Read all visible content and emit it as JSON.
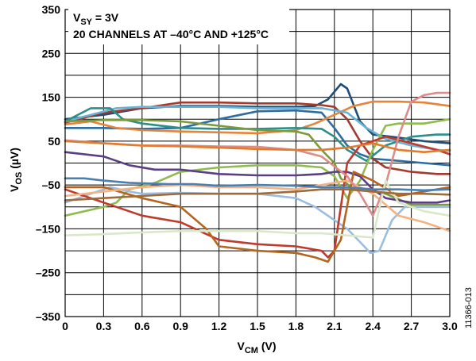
{
  "chart_data": {
    "type": "line",
    "title": "",
    "annotation": {
      "line1_main": "V",
      "line1_sub": "SY",
      "line1_rest": " = 3V",
      "line2": "20 CHANNELS AT –40°C AND +125°C"
    },
    "xlabel": {
      "main": "V",
      "sub": "CM",
      "rest": " (V)"
    },
    "ylabel": {
      "main": "V",
      "sub": "OS",
      "rest": " (µV)"
    },
    "figure_id": "11366-013",
    "xlim": [
      0,
      3.0
    ],
    "ylim": [
      -350,
      350
    ],
    "x_ticks": [
      "0",
      "0.3",
      "0.6",
      "0.9",
      "1.2",
      "1.5",
      "1.8",
      "2.1",
      "2.4",
      "2.7",
      "3.0"
    ],
    "y_ticks": [
      "350",
      "250",
      "150",
      "50",
      "–50",
      "–150",
      "–250",
      "–350"
    ],
    "y_tick_values": [
      350,
      250,
      150,
      50,
      -50,
      -150,
      -250,
      -350
    ],
    "grid": true,
    "series": [
      {
        "color": "#1f4e79",
        "points": [
          [
            0,
            100
          ],
          [
            0.3,
            110
          ],
          [
            0.6,
            125
          ],
          [
            0.9,
            130
          ],
          [
            1.2,
            130
          ],
          [
            1.5,
            128
          ],
          [
            1.8,
            128
          ],
          [
            1.95,
            130
          ],
          [
            2.05,
            145
          ],
          [
            2.15,
            180
          ],
          [
            2.2,
            170
          ],
          [
            2.3,
            95
          ],
          [
            2.4,
            65
          ],
          [
            2.6,
            58
          ],
          [
            2.8,
            50
          ],
          [
            3.0,
            45
          ]
        ]
      },
      {
        "color": "#2e6da4",
        "points": [
          [
            0,
            80
          ],
          [
            0.3,
            80
          ],
          [
            0.6,
            78
          ],
          [
            0.9,
            80
          ],
          [
            1.2,
            100
          ],
          [
            1.5,
            118
          ],
          [
            1.8,
            120
          ],
          [
            2.0,
            115
          ],
          [
            2.1,
            80
          ],
          [
            2.2,
            40
          ],
          [
            2.3,
            20
          ],
          [
            2.4,
            10
          ],
          [
            2.6,
            5
          ],
          [
            2.8,
            0
          ],
          [
            3.0,
            -5
          ]
        ]
      },
      {
        "color": "#a23b2c",
        "points": [
          [
            0,
            92
          ],
          [
            0.3,
            115
          ],
          [
            0.6,
            125
          ],
          [
            0.9,
            138
          ],
          [
            1.2,
            138
          ],
          [
            1.5,
            136
          ],
          [
            1.8,
            136
          ],
          [
            2.0,
            132
          ],
          [
            2.1,
            128
          ],
          [
            2.2,
            100
          ],
          [
            2.3,
            50
          ],
          [
            2.4,
            10
          ],
          [
            2.5,
            -10
          ],
          [
            2.7,
            -20
          ],
          [
            2.9,
            -25
          ],
          [
            3.0,
            -25
          ]
        ]
      },
      {
        "color": "#e8833a",
        "points": [
          [
            0,
            88
          ],
          [
            0.2,
            95
          ],
          [
            0.4,
            80
          ],
          [
            0.6,
            75
          ],
          [
            0.9,
            72
          ],
          [
            1.2,
            70
          ],
          [
            1.5,
            68
          ],
          [
            1.8,
            75
          ],
          [
            1.95,
            90
          ],
          [
            2.1,
            110
          ],
          [
            2.25,
            130
          ],
          [
            2.4,
            140
          ],
          [
            2.6,
            140
          ],
          [
            2.8,
            138
          ],
          [
            3.0,
            130
          ]
        ]
      },
      {
        "color": "#66b3d6",
        "points": [
          [
            0,
            95
          ],
          [
            0.2,
            110
          ],
          [
            0.4,
            125
          ],
          [
            0.6,
            128
          ],
          [
            0.9,
            128
          ],
          [
            1.2,
            128
          ],
          [
            1.5,
            125
          ],
          [
            1.8,
            125
          ],
          [
            2.0,
            125
          ],
          [
            2.2,
            115
          ],
          [
            2.35,
            80
          ],
          [
            2.5,
            55
          ],
          [
            2.7,
            40
          ],
          [
            2.9,
            30
          ],
          [
            3.0,
            28
          ]
        ]
      },
      {
        "color": "#2d8e8c",
        "points": [
          [
            0,
            95
          ],
          [
            0.2,
            125
          ],
          [
            0.35,
            125
          ],
          [
            0.45,
            100
          ],
          [
            0.6,
            90
          ],
          [
            0.9,
            80
          ],
          [
            1.2,
            78
          ],
          [
            1.5,
            78
          ],
          [
            1.8,
            80
          ],
          [
            2.0,
            78
          ],
          [
            2.1,
            60
          ],
          [
            2.2,
            30
          ],
          [
            2.35,
            5
          ],
          [
            2.5,
            40
          ],
          [
            2.7,
            60
          ],
          [
            2.9,
            65
          ],
          [
            3.0,
            65
          ]
        ]
      },
      {
        "color": "#7a9a3c",
        "points": [
          [
            0,
            95
          ],
          [
            0.3,
            98
          ],
          [
            0.6,
            98
          ],
          [
            0.9,
            95
          ],
          [
            1.2,
            85
          ],
          [
            1.5,
            75
          ],
          [
            1.8,
            72
          ],
          [
            1.9,
            65
          ],
          [
            2.0,
            30
          ],
          [
            2.1,
            0
          ],
          [
            2.15,
            -35
          ],
          [
            2.25,
            -60
          ],
          [
            2.35,
            -60
          ],
          [
            2.5,
            -70
          ],
          [
            2.7,
            -95
          ],
          [
            2.9,
            -95
          ],
          [
            3.0,
            -95
          ]
        ]
      },
      {
        "color": "#8fbc4f",
        "points": [
          [
            0,
            -120
          ],
          [
            0.3,
            -100
          ],
          [
            0.4,
            -90
          ],
          [
            0.5,
            -60
          ],
          [
            0.7,
            -45
          ],
          [
            0.9,
            -20
          ],
          [
            1.2,
            -10
          ],
          [
            1.5,
            -5
          ],
          [
            1.8,
            -5
          ],
          [
            2.0,
            -10
          ],
          [
            2.1,
            -30
          ],
          [
            2.2,
            -80
          ],
          [
            2.3,
            -40
          ],
          [
            2.4,
            30
          ],
          [
            2.5,
            85
          ],
          [
            2.6,
            90
          ],
          [
            2.8,
            90
          ],
          [
            3.0,
            100
          ]
        ]
      },
      {
        "color": "#5b3f85",
        "points": [
          [
            0,
            25
          ],
          [
            0.3,
            15
          ],
          [
            0.5,
            -5
          ],
          [
            0.7,
            -15
          ],
          [
            0.9,
            -15
          ],
          [
            1.2,
            -25
          ],
          [
            1.5,
            -28
          ],
          [
            1.8,
            -28
          ],
          [
            2.0,
            -25
          ],
          [
            2.1,
            -20
          ],
          [
            2.2,
            -20
          ],
          [
            2.3,
            -30
          ],
          [
            2.4,
            -60
          ],
          [
            2.5,
            -80
          ],
          [
            2.7,
            -90
          ],
          [
            2.9,
            -90
          ],
          [
            3.0,
            -85
          ]
        ]
      },
      {
        "color": "#9bbde0",
        "points": [
          [
            0,
            -90
          ],
          [
            0.2,
            -70
          ],
          [
            0.35,
            -55
          ],
          [
            0.5,
            -65
          ],
          [
            0.6,
            -70
          ],
          [
            0.9,
            -68
          ],
          [
            1.2,
            -70
          ],
          [
            1.5,
            -70
          ],
          [
            1.8,
            -80
          ],
          [
            1.95,
            -100
          ],
          [
            2.1,
            -130
          ],
          [
            2.2,
            -150
          ],
          [
            2.3,
            -180
          ],
          [
            2.38,
            -205
          ],
          [
            2.45,
            -200
          ],
          [
            2.55,
            -130
          ],
          [
            2.65,
            -100
          ],
          [
            2.8,
            -100
          ],
          [
            3.0,
            -100
          ]
        ]
      },
      {
        "color": "#c0392b",
        "points": [
          [
            0,
            -60
          ],
          [
            0.3,
            -90
          ],
          [
            0.6,
            -120
          ],
          [
            0.9,
            -135
          ],
          [
            1.2,
            -175
          ],
          [
            1.5,
            -185
          ],
          [
            1.8,
            -190
          ],
          [
            2.0,
            -200
          ],
          [
            2.05,
            -215
          ],
          [
            2.1,
            -200
          ],
          [
            2.15,
            -100
          ],
          [
            2.2,
            0
          ],
          [
            2.3,
            40
          ],
          [
            2.5,
            60
          ],
          [
            2.7,
            45
          ],
          [
            2.9,
            30
          ],
          [
            3.0,
            20
          ]
        ]
      },
      {
        "color": "#b5651d",
        "points": [
          [
            0,
            -55
          ],
          [
            0.3,
            -55
          ],
          [
            0.6,
            -80
          ],
          [
            0.9,
            -100
          ],
          [
            1.1,
            -150
          ],
          [
            1.2,
            -190
          ],
          [
            1.5,
            -200
          ],
          [
            1.8,
            -205
          ],
          [
            1.95,
            -215
          ],
          [
            2.05,
            -225
          ],
          [
            2.15,
            -175
          ],
          [
            2.25,
            -20
          ],
          [
            2.4,
            -40
          ],
          [
            2.6,
            -75
          ],
          [
            2.8,
            -65
          ],
          [
            3.0,
            -55
          ]
        ]
      },
      {
        "color": "#f4b183",
        "points": [
          [
            0,
            -75
          ],
          [
            0.3,
            -65
          ],
          [
            0.6,
            -55
          ],
          [
            0.9,
            -50
          ],
          [
            1.2,
            -55
          ],
          [
            1.5,
            -55
          ],
          [
            1.8,
            -60
          ],
          [
            2.0,
            -50
          ],
          [
            2.2,
            -40
          ],
          [
            2.4,
            -70
          ],
          [
            2.6,
            -120
          ],
          [
            2.8,
            -135
          ],
          [
            3.0,
            -155
          ]
        ]
      },
      {
        "color": "#dd8b8b",
        "points": [
          [
            0,
            52
          ],
          [
            0.3,
            45
          ],
          [
            0.6,
            40
          ],
          [
            0.9,
            40
          ],
          [
            1.2,
            38
          ],
          [
            1.5,
            37
          ],
          [
            1.8,
            30
          ],
          [
            2.0,
            15
          ],
          [
            2.2,
            -30
          ],
          [
            2.3,
            -70
          ],
          [
            2.4,
            -120
          ],
          [
            2.5,
            -50
          ],
          [
            2.6,
            60
          ],
          [
            2.7,
            140
          ],
          [
            2.8,
            155
          ],
          [
            2.9,
            160
          ],
          [
            3.0,
            160
          ]
        ]
      },
      {
        "color": "#d9e8c8",
        "points": [
          [
            0,
            -165
          ],
          [
            0.3,
            -162
          ],
          [
            0.6,
            -158
          ],
          [
            0.9,
            -155
          ],
          [
            1.2,
            -155
          ],
          [
            1.5,
            -155
          ],
          [
            1.8,
            -160
          ],
          [
            2.0,
            -160
          ],
          [
            2.2,
            -165
          ],
          [
            2.4,
            -170
          ],
          [
            2.5,
            -40
          ],
          [
            2.6,
            -90
          ],
          [
            2.8,
            -110
          ],
          [
            3.0,
            -120
          ]
        ]
      },
      {
        "color": "#4a7fb0",
        "points": [
          [
            0,
            -35
          ],
          [
            0.15,
            -35
          ],
          [
            0.3,
            -40
          ],
          [
            0.5,
            -45
          ],
          [
            0.8,
            -48
          ],
          [
            1.0,
            -48
          ],
          [
            1.2,
            -52
          ],
          [
            1.5,
            -50
          ],
          [
            1.8,
            -52
          ],
          [
            2.0,
            -55
          ],
          [
            2.2,
            -55
          ],
          [
            2.4,
            -60
          ],
          [
            2.6,
            -60
          ],
          [
            2.8,
            -62
          ],
          [
            3.0,
            -60
          ]
        ]
      },
      {
        "color": "#e37b2c",
        "points": [
          [
            0,
            50
          ],
          [
            0.3,
            45
          ],
          [
            0.6,
            40
          ],
          [
            0.9,
            38
          ],
          [
            1.2,
            35
          ],
          [
            1.5,
            32
          ],
          [
            1.8,
            30
          ],
          [
            2.0,
            30
          ],
          [
            2.2,
            35
          ],
          [
            2.4,
            45
          ],
          [
            2.6,
            30
          ],
          [
            2.8,
            25
          ],
          [
            3.0,
            30
          ]
        ]
      },
      {
        "color": "#a06a3a",
        "points": [
          [
            0,
            -85
          ],
          [
            0.3,
            -80
          ],
          [
            0.6,
            -75
          ],
          [
            0.9,
            -70
          ],
          [
            1.2,
            -70
          ],
          [
            1.5,
            -70
          ],
          [
            1.8,
            -65
          ],
          [
            2.0,
            -60
          ],
          [
            2.2,
            -60
          ],
          [
            2.4,
            -65
          ],
          [
            2.6,
            -70
          ],
          [
            2.8,
            -70
          ],
          [
            3.0,
            -72
          ]
        ]
      }
    ]
  }
}
